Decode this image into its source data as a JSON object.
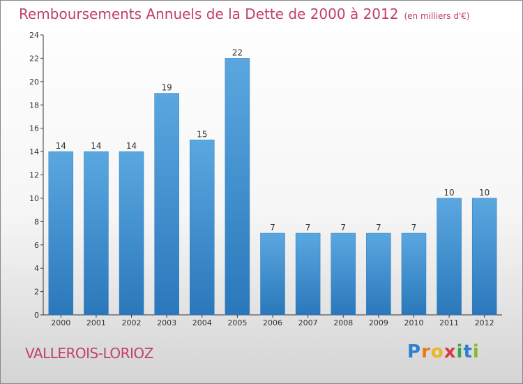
{
  "title": "Remboursements Annuels de la Dette de 2000 à 2012",
  "unit": "(en milliers d'€)",
  "location": "VALLEROIS-LORIOZ",
  "brand": {
    "letters": [
      "P",
      "r",
      "o",
      "x",
      "i",
      "t",
      "i"
    ],
    "colors": [
      "#2e7fd0",
      "#e87a1e",
      "#e8b81e",
      "#d9393f",
      "#3aa640",
      "#2e7fd0",
      "#8ab82a"
    ]
  },
  "colors": {
    "bar": "#5aa7e0",
    "bar_dark": "#2a78bb",
    "accent": "#c0406a"
  },
  "chart_data": {
    "type": "bar",
    "categories": [
      "2000",
      "2001",
      "2002",
      "2003",
      "2004",
      "2005",
      "2006",
      "2007",
      "2008",
      "2009",
      "2010",
      "2011",
      "2012"
    ],
    "values": [
      14,
      14,
      14,
      19,
      15,
      22,
      7,
      7,
      7,
      7,
      7,
      10,
      10
    ],
    "title": "Remboursements Annuels de la Dette de 2000 à 2012",
    "ylim": [
      0,
      24
    ],
    "yticks": [
      0,
      2,
      4,
      6,
      8,
      10,
      12,
      14,
      16,
      18,
      20,
      22,
      24
    ],
    "grid": false
  }
}
